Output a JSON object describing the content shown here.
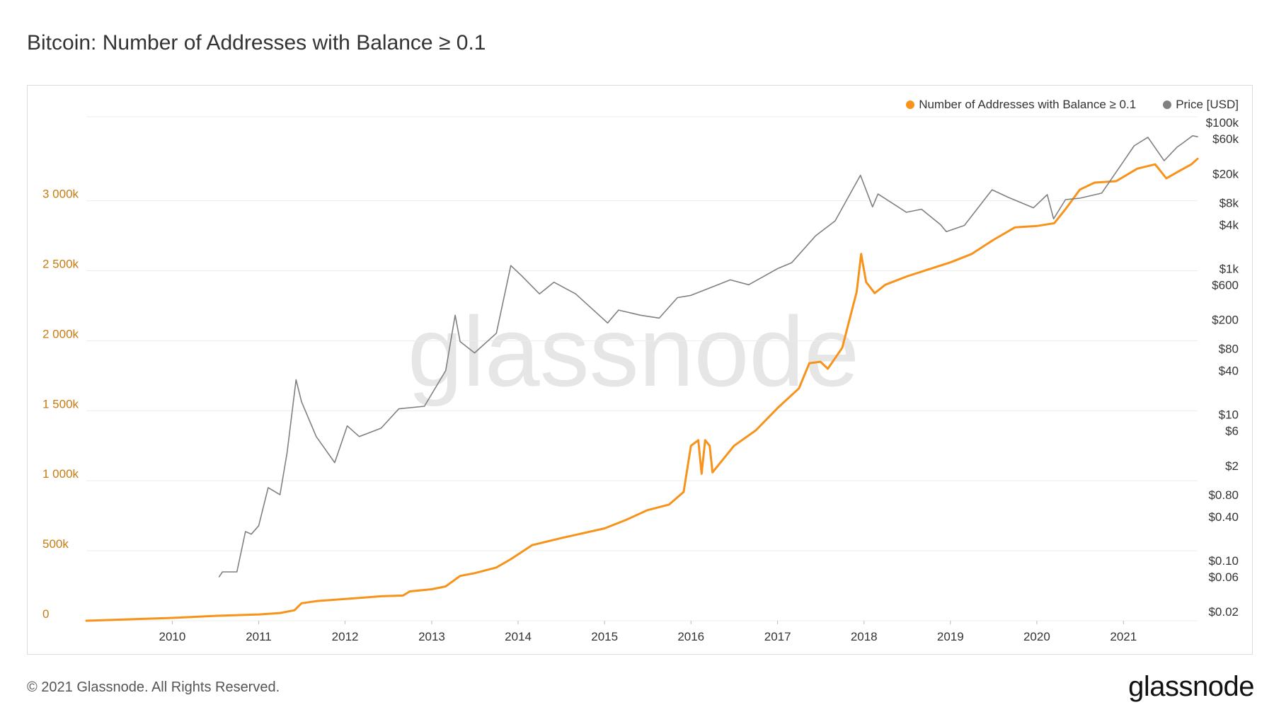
{
  "page": {
    "title": "Bitcoin: Number of Addresses with Balance ≥ 0.1",
    "footer": "© 2021 Glassnode. All Rights Reserved.",
    "brand": "glassnode",
    "watermark": "glassnode"
  },
  "colors": {
    "addresses": "#f7931a",
    "price": "#808080",
    "left_axis_text": "#c77c12",
    "grid": "#ececec"
  },
  "chart_data": {
    "type": "line",
    "title": "Bitcoin: Number of Addresses with Balance ≥ 0.1",
    "x_axis": {
      "type": "time",
      "range": [
        "2009-01-03",
        "2021-11-10"
      ],
      "ticks": [
        "2010",
        "2011",
        "2012",
        "2013",
        "2014",
        "2015",
        "2016",
        "2017",
        "2018",
        "2019",
        "2020",
        "2021"
      ]
    },
    "y_left": {
      "scale": "linear",
      "range": [
        0,
        3600000
      ],
      "ticks": [
        {
          "value": 0,
          "label": "0"
        },
        {
          "value": 500000,
          "label": "500k"
        },
        {
          "value": 1000000,
          "label": "1 000k"
        },
        {
          "value": 1500000,
          "label": "1 500k"
        },
        {
          "value": 2000000,
          "label": "2 000k"
        },
        {
          "value": 2500000,
          "label": "2 500k"
        },
        {
          "value": 3000000,
          "label": "3 000k"
        }
      ]
    },
    "y_right": {
      "scale": "log",
      "range": [
        0.015,
        120000
      ],
      "ticks": [
        {
          "value": 100000,
          "label": "$100k"
        },
        {
          "value": 60000,
          "label": "$60k"
        },
        {
          "value": 20000,
          "label": "$20k"
        },
        {
          "value": 8000,
          "label": "$8k"
        },
        {
          "value": 4000,
          "label": "$4k"
        },
        {
          "value": 1000,
          "label": "$1k"
        },
        {
          "value": 600,
          "label": "$600"
        },
        {
          "value": 200,
          "label": "$200"
        },
        {
          "value": 80,
          "label": "$80"
        },
        {
          "value": 40,
          "label": "$40"
        },
        {
          "value": 10,
          "label": "$10"
        },
        {
          "value": 6,
          "label": "$6"
        },
        {
          "value": 2,
          "label": "$2"
        },
        {
          "value": 0.8,
          "label": "$0.80"
        },
        {
          "value": 0.4,
          "label": "$0.40"
        },
        {
          "value": 0.1,
          "label": "$0.10"
        },
        {
          "value": 0.06,
          "label": "$0.06"
        },
        {
          "value": 0.02,
          "label": "$0.02"
        }
      ]
    },
    "grid": true,
    "legend_position": "top-right",
    "series": [
      {
        "name": "Number of Addresses with Balance ≥ 0.1",
        "axis": "left",
        "color": "#f7931a",
        "points": [
          [
            "2009-01-03",
            0
          ],
          [
            "2009-07-01",
            10000
          ],
          [
            "2010-01-01",
            20000
          ],
          [
            "2010-07-01",
            35000
          ],
          [
            "2011-01-01",
            45000
          ],
          [
            "2011-04-01",
            55000
          ],
          [
            "2011-06-01",
            75000
          ],
          [
            "2011-07-01",
            125000
          ],
          [
            "2011-09-01",
            140000
          ],
          [
            "2012-01-01",
            155000
          ],
          [
            "2012-06-01",
            175000
          ],
          [
            "2012-09-01",
            180000
          ],
          [
            "2012-10-01",
            210000
          ],
          [
            "2013-01-01",
            225000
          ],
          [
            "2013-03-01",
            245000
          ],
          [
            "2013-05-01",
            320000
          ],
          [
            "2013-07-01",
            340000
          ],
          [
            "2013-10-01",
            380000
          ],
          [
            "2013-12-01",
            440000
          ],
          [
            "2014-03-01",
            540000
          ],
          [
            "2014-07-01",
            590000
          ],
          [
            "2015-01-01",
            660000
          ],
          [
            "2015-04-01",
            720000
          ],
          [
            "2015-07-01",
            790000
          ],
          [
            "2015-10-01",
            830000
          ],
          [
            "2015-12-01",
            920000
          ],
          [
            "2016-01-01",
            1250000
          ],
          [
            "2016-02-01",
            1290000
          ],
          [
            "2016-02-15",
            1050000
          ],
          [
            "2016-03-01",
            1290000
          ],
          [
            "2016-03-20",
            1250000
          ],
          [
            "2016-04-01",
            1060000
          ],
          [
            "2016-07-01",
            1250000
          ],
          [
            "2016-10-01",
            1360000
          ],
          [
            "2017-01-01",
            1520000
          ],
          [
            "2017-04-01",
            1660000
          ],
          [
            "2017-05-15",
            1840000
          ],
          [
            "2017-07-01",
            1850000
          ],
          [
            "2017-08-01",
            1800000
          ],
          [
            "2017-10-01",
            1950000
          ],
          [
            "2017-12-01",
            2350000
          ],
          [
            "2017-12-20",
            2620000
          ],
          [
            "2018-01-10",
            2420000
          ],
          [
            "2018-02-15",
            2340000
          ],
          [
            "2018-04-01",
            2400000
          ],
          [
            "2018-07-01",
            2460000
          ],
          [
            "2018-10-01",
            2510000
          ],
          [
            "2019-01-01",
            2560000
          ],
          [
            "2019-04-01",
            2620000
          ],
          [
            "2019-07-01",
            2720000
          ],
          [
            "2019-10-01",
            2810000
          ],
          [
            "2020-01-01",
            2820000
          ],
          [
            "2020-03-15",
            2840000
          ],
          [
            "2020-05-01",
            2940000
          ],
          [
            "2020-07-01",
            3080000
          ],
          [
            "2020-09-01",
            3130000
          ],
          [
            "2020-12-01",
            3140000
          ],
          [
            "2021-03-01",
            3230000
          ],
          [
            "2021-05-15",
            3260000
          ],
          [
            "2021-07-01",
            3160000
          ],
          [
            "2021-09-01",
            3220000
          ],
          [
            "2021-10-15",
            3260000
          ],
          [
            "2021-11-10",
            3300000
          ]
        ]
      },
      {
        "name": "Price [USD]",
        "axis": "right",
        "color": "#808080",
        "points": [
          [
            "2010-07-18",
            0.06
          ],
          [
            "2010-08-01",
            0.07
          ],
          [
            "2010-10-01",
            0.07
          ],
          [
            "2010-11-06",
            0.25
          ],
          [
            "2010-12-01",
            0.23
          ],
          [
            "2011-01-01",
            0.3
          ],
          [
            "2011-02-10",
            1.0
          ],
          [
            "2011-04-01",
            0.8
          ],
          [
            "2011-05-01",
            3.0
          ],
          [
            "2011-06-08",
            30
          ],
          [
            "2011-07-01",
            15
          ],
          [
            "2011-09-01",
            5
          ],
          [
            "2011-11-18",
            2.2
          ],
          [
            "2012-01-10",
            7
          ],
          [
            "2012-03-01",
            5
          ],
          [
            "2012-06-01",
            6.5
          ],
          [
            "2012-08-15",
            12
          ],
          [
            "2012-12-01",
            13
          ],
          [
            "2013-03-01",
            40
          ],
          [
            "2013-04-10",
            230
          ],
          [
            "2013-05-01",
            100
          ],
          [
            "2013-07-01",
            70
          ],
          [
            "2013-10-01",
            130
          ],
          [
            "2013-12-01",
            1100
          ],
          [
            "2014-01-15",
            800
          ],
          [
            "2014-04-01",
            450
          ],
          [
            "2014-06-01",
            650
          ],
          [
            "2014-09-01",
            450
          ],
          [
            "2015-01-14",
            180
          ],
          [
            "2015-03-01",
            270
          ],
          [
            "2015-06-01",
            230
          ],
          [
            "2015-08-20",
            210
          ],
          [
            "2015-11-05",
            400
          ],
          [
            "2016-01-01",
            430
          ],
          [
            "2016-06-15",
            700
          ],
          [
            "2016-09-01",
            600
          ],
          [
            "2017-01-01",
            1000
          ],
          [
            "2017-03-01",
            1200
          ],
          [
            "2017-06-10",
            2800
          ],
          [
            "2017-09-01",
            4500
          ],
          [
            "2017-12-17",
            19000
          ],
          [
            "2018-02-06",
            7000
          ],
          [
            "2018-03-01",
            10500
          ],
          [
            "2018-06-29",
            5900
          ],
          [
            "2018-09-01",
            6500
          ],
          [
            "2018-11-20",
            4000
          ],
          [
            "2018-12-15",
            3200
          ],
          [
            "2019-03-01",
            3900
          ],
          [
            "2019-06-26",
            12000
          ],
          [
            "2019-09-01",
            9500
          ],
          [
            "2019-12-18",
            6800
          ],
          [
            "2020-02-14",
            10300
          ],
          [
            "2020-03-12",
            4800
          ],
          [
            "2020-05-01",
            8800
          ],
          [
            "2020-07-01",
            9200
          ],
          [
            "2020-10-01",
            10800
          ],
          [
            "2020-12-31",
            29000
          ],
          [
            "2021-02-15",
            48000
          ],
          [
            "2021-04-14",
            63000
          ],
          [
            "2021-06-22",
            30000
          ],
          [
            "2021-08-15",
            46000
          ],
          [
            "2021-09-07",
            52000
          ],
          [
            "2021-10-20",
            66000
          ],
          [
            "2021-11-10",
            64000
          ]
        ]
      }
    ]
  }
}
